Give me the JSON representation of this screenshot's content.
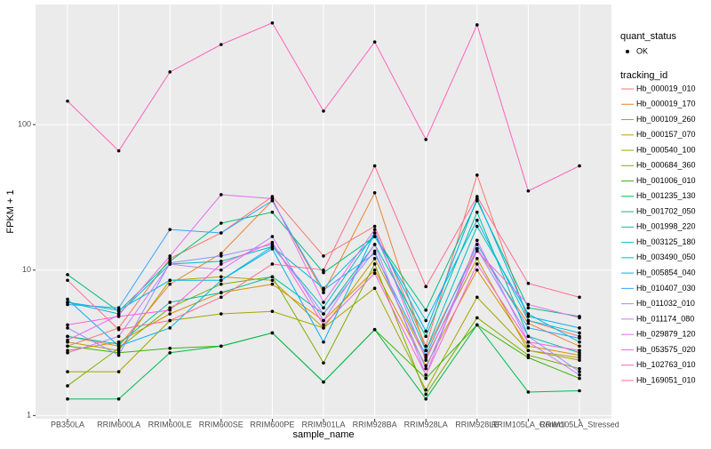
{
  "chart_data": {
    "type": "line",
    "x_label": "sample_name",
    "y_label": "FPKM + 1",
    "log_scale": true,
    "grid": true,
    "ylim": [
      0.95,
      670
    ],
    "yticks": [
      1,
      10,
      100
    ],
    "categories": [
      "PB350LA",
      "RRIM600LA",
      "RRIM600LE",
      "RRIM600SE",
      "RRIM600PE",
      "RRIM901LA",
      "RRIM928BA",
      "RRIM928LA",
      "RRIM928LE",
      "RRIM105LA_Control",
      "RRIM105LA_Stressed"
    ],
    "shape_legend": {
      "title": "quant_status",
      "label": "OK"
    },
    "legend_title": "tracking_id",
    "legend_position": "right",
    "series": [
      {
        "name": "Hb_000019_010",
        "color": "#F8766D",
        "values": [
          3.0,
          4.0,
          12,
          18,
          32,
          12.5,
          20,
          3.0,
          45,
          4.5,
          3.5
        ]
      },
      {
        "name": "Hb_000019_170",
        "color": "#EA8331",
        "values": [
          3.5,
          3.0,
          8,
          13,
          30,
          7,
          34,
          2.8,
          14,
          4.3,
          3.0
        ]
      },
      {
        "name": "Hb_000109_260",
        "color": "#D89000",
        "values": [
          2.8,
          3.2,
          5,
          7,
          8,
          4.5,
          10,
          2.2,
          10,
          3.0,
          2.6
        ]
      },
      {
        "name": "Hb_000157_070",
        "color": "#C09B00",
        "values": [
          3.2,
          2.8,
          8.5,
          9,
          8.5,
          4.0,
          12,
          2.5,
          12,
          2.8,
          2.5
        ]
      },
      {
        "name": "Hb_000540_100",
        "color": "#A3A500",
        "values": [
          2.0,
          2.0,
          4.5,
          5.0,
          5.2,
          4.0,
          7.5,
          1.5,
          6.5,
          2.8,
          2.4
        ]
      },
      {
        "name": "Hb_000684_360",
        "color": "#7CAE00",
        "values": [
          1.6,
          2.9,
          5.5,
          8,
          9,
          2.3,
          11,
          1.4,
          4.7,
          2.6,
          2.1
        ]
      },
      {
        "name": "Hb_001006_010",
        "color": "#39B600",
        "values": [
          3.0,
          2.7,
          2.9,
          3.0,
          3.7,
          1.7,
          3.9,
          1.8,
          4.2,
          2.5,
          1.8
        ]
      },
      {
        "name": "Hb_001235_130",
        "color": "#00BB4E",
        "values": [
          1.3,
          1.3,
          2.7,
          3.0,
          3.7,
          1.7,
          3.9,
          1.3,
          4.2,
          1.45,
          1.48
        ]
      },
      {
        "name": "Hb_001702_050",
        "color": "#00BF7D",
        "values": [
          9.3,
          5.2,
          11.5,
          21,
          25,
          9.6,
          17,
          5.3,
          30,
          5.5,
          4.8
        ]
      },
      {
        "name": "Hb_001998_220",
        "color": "#00C1A3",
        "values": [
          3.5,
          3.1,
          6.0,
          7.0,
          9.0,
          5.0,
          15,
          3.5,
          25,
          3.5,
          2.7
        ]
      },
      {
        "name": "Hb_003125_180",
        "color": "#00BFC4",
        "values": [
          6.0,
          5.0,
          11,
          11.5,
          14.5,
          5.5,
          18,
          2.8,
          20,
          5.0,
          3.2
        ]
      },
      {
        "name": "Hb_003490_050",
        "color": "#00BAE0",
        "values": [
          6.0,
          5.3,
          8.5,
          8.5,
          14.5,
          7.5,
          17,
          4.5,
          22,
          4.5,
          3.7
        ]
      },
      {
        "name": "Hb_005854_040",
        "color": "#00B0F6",
        "values": [
          6.3,
          3.0,
          4.0,
          8.5,
          14,
          3.2,
          18,
          3.8,
          31,
          4.8,
          4.0
        ]
      },
      {
        "name": "Hb_010407_030",
        "color": "#35A2FF",
        "values": [
          5.8,
          5.5,
          19,
          18,
          30,
          7.3,
          13,
          2.6,
          15,
          4.0,
          3.4
        ]
      },
      {
        "name": "Hb_011032_010",
        "color": "#9590FF",
        "values": [
          4.0,
          2.6,
          11.2,
          12.5,
          15,
          5.0,
          13.5,
          2.1,
          14,
          3.5,
          2.0
        ]
      },
      {
        "name": "Hb_011174_080",
        "color": "#C77CFF",
        "values": [
          2.7,
          3.5,
          11,
          10,
          17,
          4.5,
          15,
          1.9,
          16,
          3.2,
          1.9
        ]
      },
      {
        "name": "Hb_029879_120",
        "color": "#E76BF3",
        "values": [
          3.3,
          4.9,
          12.5,
          33,
          31,
          6.0,
          19,
          2.4,
          13.5,
          5.8,
          4.7
        ]
      },
      {
        "name": "Hb_053575_020",
        "color": "#FA62DB",
        "values": [
          4.2,
          4.8,
          5.3,
          11,
          15.5,
          4.2,
          9.5,
          1.9,
          11,
          3.2,
          2.8
        ]
      },
      {
        "name": "Hb_102763_010",
        "color": "#FF62BC",
        "values": [
          145,
          66,
          230,
          355,
          500,
          124,
          370,
          79,
          485,
          35,
          52
        ]
      },
      {
        "name": "Hb_169051_010",
        "color": "#FF6C91",
        "values": [
          8.5,
          3.9,
          4.5,
          6.5,
          11,
          10,
          52,
          7.7,
          32,
          8.1,
          6.5
        ]
      }
    ]
  }
}
